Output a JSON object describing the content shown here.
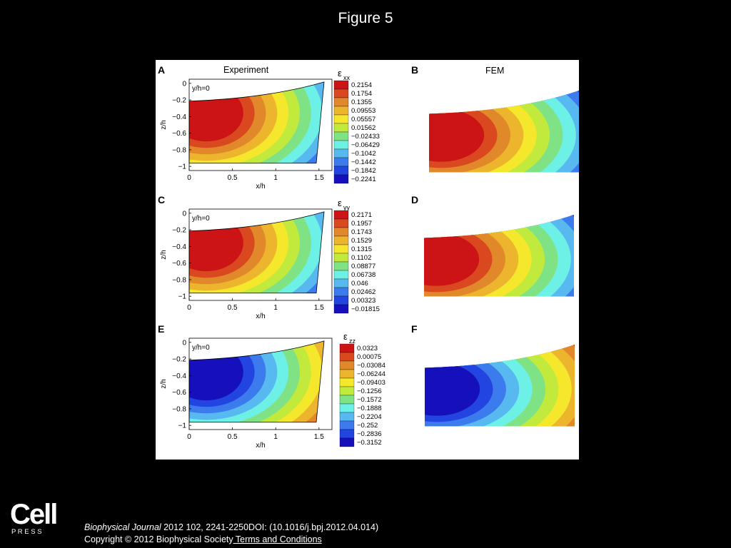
{
  "slide_title": "Figure 5",
  "publisher": {
    "brand": "Cell",
    "sub": "P R E S S"
  },
  "citation": {
    "journal": "Biophysical Journal",
    "details": " 2012 102, 2241-2250DOI: (10.1016/j.bpj.2012.04.014)",
    "copyright": "Copyright © 2012 Biophysical Society",
    "terms_link": " Terms and Conditions"
  },
  "chart_data": [
    {
      "type": "heatmap",
      "panel": "A",
      "column_title": "Experiment",
      "annotation": "y/h=0",
      "xlabel": "x/h",
      "ylabel": "z/h",
      "xticks": [
        "0",
        "0.5",
        "1",
        "1.5"
      ],
      "yticks": [
        "0",
        "−0.2",
        "−0.4",
        "−0.6",
        "−0.8",
        "−1"
      ],
      "xlim": [
        0,
        1.65
      ],
      "ylim": [
        -1.05,
        0.05
      ],
      "colorbar_symbol": "ε",
      "colorbar_sub": "xx",
      "colorbar_levels": [
        "0.2154",
        "0.1754",
        "0.1355",
        "0.09553",
        "0.05557",
        "0.01562",
        "−0.02433",
        "−0.06429",
        "−0.1042",
        "−0.1442",
        "−0.1842",
        "−0.2241"
      ]
    },
    {
      "type": "heatmap",
      "panel": "B",
      "column_title": "FEM",
      "field": "xx"
    },
    {
      "type": "heatmap",
      "panel": "C",
      "annotation": "y/h=0",
      "xlabel": "x/h",
      "ylabel": "z/h",
      "xticks": [
        "0",
        "0.5",
        "1",
        "1.5"
      ],
      "yticks": [
        "0",
        "−0.2",
        "−0.4",
        "−0.6",
        "−0.8",
        "−1"
      ],
      "xlim": [
        0,
        1.65
      ],
      "ylim": [
        -1.05,
        0.05
      ],
      "colorbar_symbol": "ε",
      "colorbar_sub": "yy",
      "colorbar_levels": [
        "0.2171",
        "0.1957",
        "0.1743",
        "0.1529",
        "0.1315",
        "0.1102",
        "0.08877",
        "0.06738",
        "0.046",
        "0.02462",
        "0.00323",
        "−0.01815"
      ]
    },
    {
      "type": "heatmap",
      "panel": "D",
      "field": "yy"
    },
    {
      "type": "heatmap",
      "panel": "E",
      "annotation": "y/h=0",
      "xlabel": "x/h",
      "ylabel": "z/h",
      "xticks": [
        "0",
        "0.5",
        "1",
        "1.5"
      ],
      "yticks": [
        "0",
        "−0.2",
        "−0.4",
        "−0.6",
        "−0.8",
        "−1"
      ],
      "xlim": [
        0,
        1.65
      ],
      "ylim": [
        -1.05,
        0.05
      ],
      "colorbar_symbol": "ε",
      "colorbar_sub": "zz",
      "colorbar_levels": [
        "0.0323",
        "0.00075",
        "−0.03084",
        "−0.06244",
        "−0.09403",
        "−0.1256",
        "−0.1572",
        "−0.1888",
        "−0.2204",
        "−0.252",
        "−0.2836",
        "−0.3152"
      ]
    },
    {
      "type": "heatmap",
      "panel": "F",
      "field": "zz"
    }
  ],
  "colormap": [
    "#cc1417",
    "#d9481e",
    "#e0882a",
    "#ecb52d",
    "#f5e82c",
    "#c1ea3c",
    "#7fe385",
    "#6df0e6",
    "#58b9f0",
    "#3c7bee",
    "#2244e0",
    "#1610bc"
  ]
}
